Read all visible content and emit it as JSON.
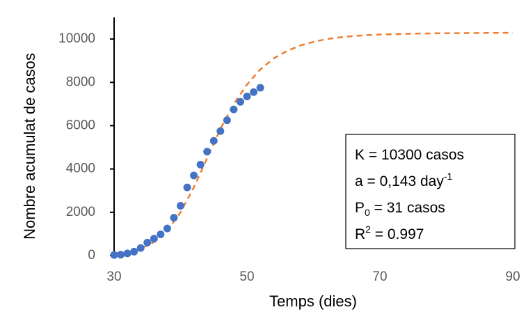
{
  "chart_data": {
    "type": "scatter",
    "x_label": "Temps (dies)",
    "y_label": "Nombre acumulat de casos",
    "xlim": [
      30,
      90
    ],
    "ylim": [
      0,
      11000
    ],
    "xticks": [
      30,
      50,
      70,
      90
    ],
    "yticks": [
      0,
      2000,
      4000,
      6000,
      8000,
      10000
    ],
    "grid": false,
    "series": [
      {
        "kind": "points",
        "color": "#4472c4",
        "x": [
          30,
          31,
          32,
          33,
          34,
          35,
          36,
          37,
          38,
          39,
          40,
          41,
          42,
          43,
          44,
          45,
          46,
          47,
          48,
          49,
          50,
          51,
          52
        ],
        "values": [
          30,
          40,
          100,
          180,
          350,
          600,
          780,
          980,
          1250,
          1750,
          2300,
          3150,
          3700,
          4200,
          4800,
          5300,
          5750,
          6250,
          6750,
          7100,
          7350,
          7550,
          7750
        ]
      },
      {
        "kind": "dashed-line",
        "color": "#ed7d31",
        "x": [
          30,
          32,
          34,
          36,
          38,
          40,
          42,
          44,
          46,
          48,
          50,
          52,
          54,
          56,
          58,
          60,
          62,
          64,
          66,
          68,
          70,
          75,
          80,
          85,
          90
        ],
        "values": [
          100,
          170,
          330,
          620,
          1150,
          2000,
          3150,
          4500,
          5850,
          7000,
          7900,
          8600,
          9100,
          9450,
          9700,
          9870,
          10000,
          10080,
          10140,
          10180,
          10210,
          10250,
          10270,
          10280,
          10290
        ]
      }
    ],
    "annotations": [
      {
        "text": "K = 10300 casos"
      },
      {
        "text": "a = 0,143 day",
        "sup": "-1"
      },
      {
        "text": "P",
        "sub": "0",
        "after": " = 31 casos"
      },
      {
        "text": "R",
        "sup": "2",
        "after": " = 0.997"
      }
    ]
  }
}
